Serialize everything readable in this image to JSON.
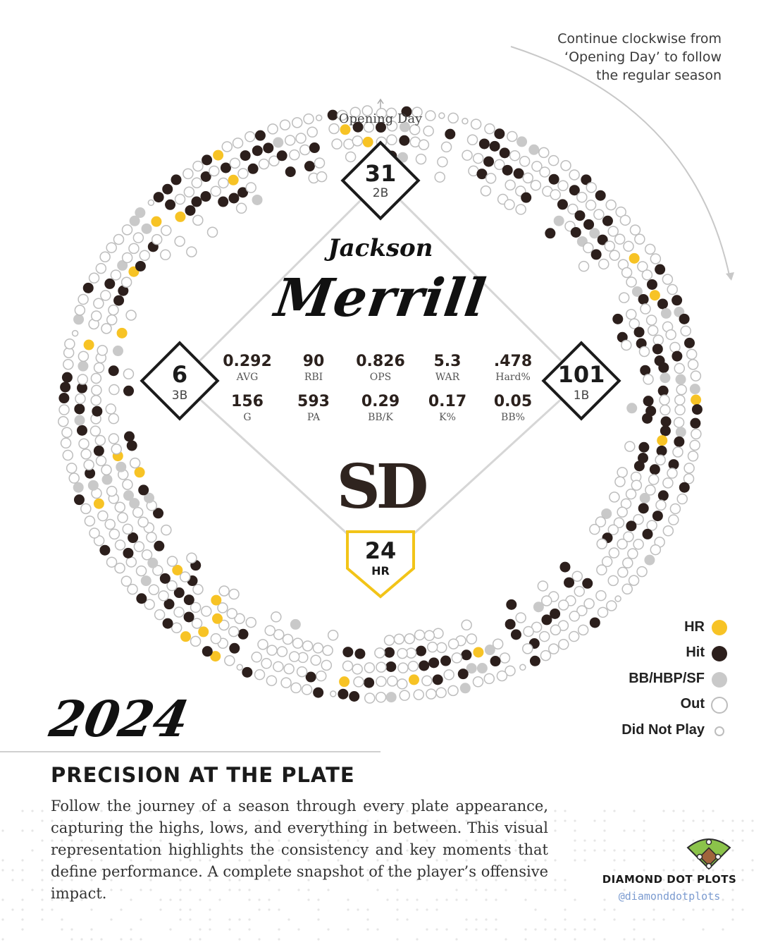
{
  "note": {
    "line1": "Continue clockwise from",
    "line2": "‘Opening Day’ to follow",
    "line3": "the regular season"
  },
  "opening_day_label": "Opening Day",
  "player": {
    "first_name": "Jackson",
    "last_name": "Merrill"
  },
  "bases": {
    "second": {
      "value": "31",
      "label": "2B"
    },
    "third": {
      "value": "6",
      "label": "3B"
    },
    "first": {
      "value": "101",
      "label": "1B"
    },
    "home": {
      "value": "24",
      "label": "HR"
    }
  },
  "stats_top": [
    {
      "value": "0.292",
      "label": "AVG"
    },
    {
      "value": "90",
      "label": "RBI"
    },
    {
      "value": "0.826",
      "label": "OPS"
    },
    {
      "value": "5.3",
      "label": "WAR"
    },
    {
      "value": ".478",
      "label": "Hard%"
    }
  ],
  "stats_bottom": [
    {
      "value": "156",
      "label": "G"
    },
    {
      "value": "593",
      "label": "PA"
    },
    {
      "value": "0.29",
      "label": "BB/K"
    },
    {
      "value": "0.17",
      "label": "K%"
    },
    {
      "value": "0.05",
      "label": "BB%"
    }
  ],
  "year": "2024",
  "legend": [
    {
      "label": "HR",
      "type": "hr"
    },
    {
      "label": "Hit",
      "type": "hit"
    },
    {
      "label": "BB/HBP/SF",
      "type": "walk"
    },
    {
      "label": "Out",
      "type": "out"
    },
    {
      "label": "Did Not Play",
      "type": "dnp"
    }
  ],
  "headline": "PRECISION AT THE PLATE",
  "description": "Follow the journey of a season through every plate appearance, capturing the highs, lows, and everything in between. This visual representation highlights the consistency and key moments that define performance. A complete snapshot of the player’s offensive impact.",
  "brand": {
    "name": "DIAMOND DOT PLOTS",
    "handle": "@diamonddotplots"
  },
  "logo_text": "SD",
  "colors": {
    "hr": "#f7c325",
    "hit": "#2c1f1c",
    "walk": "#c9c9c9",
    "out_stroke": "#bdbdbd",
    "accent_gold": "#f2c418",
    "brown": "#2f241f",
    "brand_green": "#8bc34a",
    "brand_brown": "#a0643c"
  }
}
